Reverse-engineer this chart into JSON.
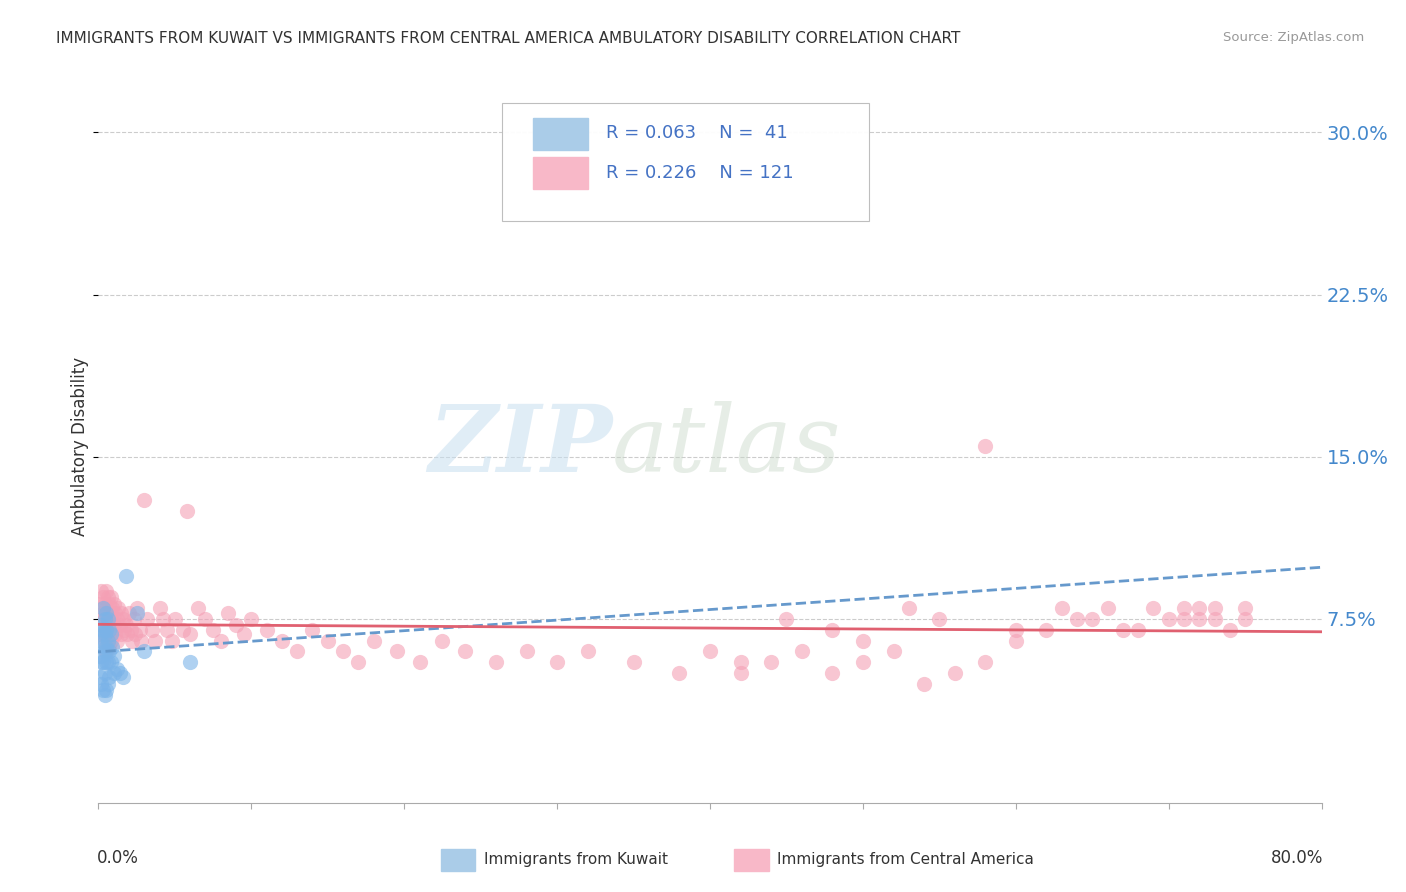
{
  "title": "IMMIGRANTS FROM KUWAIT VS IMMIGRANTS FROM CENTRAL AMERICA AMBULATORY DISABILITY CORRELATION CHART",
  "source": "Source: ZipAtlas.com",
  "ylabel": "Ambulatory Disability",
  "yticks": [
    "7.5%",
    "15.0%",
    "22.5%",
    "30.0%"
  ],
  "ytick_values": [
    0.075,
    0.15,
    0.225,
    0.3
  ],
  "xlim": [
    0.0,
    0.8
  ],
  "ylim": [
    -0.01,
    0.32
  ],
  "legend_r1": "R = 0.063",
  "legend_n1": "N =  41",
  "legend_r2": "R = 0.226",
  "legend_n2": "N = 121",
  "color_kuwait": "#7ab3e8",
  "color_central": "#f4a0b5",
  "color_kuwait_trend": "#6699cc",
  "color_central_trend": "#e06070",
  "background_color": "#ffffff",
  "watermark_zip": "ZIP",
  "watermark_atlas": "atlas",
  "kuwait_x": [
    0.001,
    0.001,
    0.001,
    0.002,
    0.002,
    0.002,
    0.002,
    0.003,
    0.003,
    0.003,
    0.003,
    0.003,
    0.004,
    0.004,
    0.004,
    0.004,
    0.004,
    0.005,
    0.005,
    0.005,
    0.005,
    0.005,
    0.006,
    0.006,
    0.006,
    0.006,
    0.007,
    0.007,
    0.007,
    0.008,
    0.008,
    0.009,
    0.01,
    0.01,
    0.012,
    0.014,
    0.016,
    0.018,
    0.025,
    0.03,
    0.06
  ],
  "kuwait_y": [
    0.068,
    0.058,
    0.048,
    0.072,
    0.065,
    0.055,
    0.045,
    0.08,
    0.07,
    0.062,
    0.055,
    0.042,
    0.075,
    0.068,
    0.06,
    0.05,
    0.04,
    0.078,
    0.07,
    0.062,
    0.055,
    0.042,
    0.075,
    0.065,
    0.055,
    0.045,
    0.07,
    0.06,
    0.048,
    0.068,
    0.055,
    0.062,
    0.058,
    0.05,
    0.052,
    0.05,
    0.048,
    0.095,
    0.078,
    0.06,
    0.055
  ],
  "central_x": [
    0.001,
    0.002,
    0.002,
    0.003,
    0.003,
    0.003,
    0.004,
    0.004,
    0.004,
    0.005,
    0.005,
    0.005,
    0.005,
    0.006,
    0.006,
    0.006,
    0.007,
    0.007,
    0.007,
    0.008,
    0.008,
    0.008,
    0.009,
    0.009,
    0.01,
    0.01,
    0.011,
    0.011,
    0.012,
    0.012,
    0.013,
    0.014,
    0.015,
    0.015,
    0.016,
    0.017,
    0.018,
    0.019,
    0.02,
    0.021,
    0.022,
    0.023,
    0.024,
    0.025,
    0.027,
    0.028,
    0.03,
    0.032,
    0.035,
    0.037,
    0.04,
    0.042,
    0.045,
    0.048,
    0.05,
    0.055,
    0.058,
    0.06,
    0.065,
    0.07,
    0.075,
    0.08,
    0.085,
    0.09,
    0.095,
    0.1,
    0.11,
    0.12,
    0.13,
    0.14,
    0.15,
    0.16,
    0.17,
    0.18,
    0.195,
    0.21,
    0.225,
    0.24,
    0.26,
    0.28,
    0.3,
    0.32,
    0.35,
    0.38,
    0.4,
    0.42,
    0.45,
    0.48,
    0.5,
    0.53,
    0.55,
    0.58,
    0.6,
    0.63,
    0.65,
    0.67,
    0.69,
    0.71,
    0.72,
    0.73,
    0.74,
    0.75,
    0.75,
    0.73,
    0.72,
    0.71,
    0.7,
    0.68,
    0.66,
    0.64,
    0.62,
    0.6,
    0.58,
    0.56,
    0.54,
    0.52,
    0.5,
    0.48,
    0.46,
    0.44,
    0.42
  ],
  "central_y": [
    0.082,
    0.088,
    0.075,
    0.085,
    0.078,
    0.068,
    0.082,
    0.075,
    0.065,
    0.088,
    0.08,
    0.07,
    0.06,
    0.085,
    0.075,
    0.065,
    0.082,
    0.072,
    0.062,
    0.085,
    0.075,
    0.065,
    0.08,
    0.07,
    0.082,
    0.072,
    0.078,
    0.068,
    0.075,
    0.065,
    0.08,
    0.072,
    0.078,
    0.068,
    0.075,
    0.07,
    0.072,
    0.068,
    0.078,
    0.07,
    0.065,
    0.075,
    0.068,
    0.08,
    0.07,
    0.065,
    0.13,
    0.075,
    0.07,
    0.065,
    0.08,
    0.075,
    0.07,
    0.065,
    0.075,
    0.07,
    0.125,
    0.068,
    0.08,
    0.075,
    0.07,
    0.065,
    0.078,
    0.072,
    0.068,
    0.075,
    0.07,
    0.065,
    0.06,
    0.07,
    0.065,
    0.06,
    0.055,
    0.065,
    0.06,
    0.055,
    0.065,
    0.06,
    0.055,
    0.06,
    0.055,
    0.06,
    0.055,
    0.05,
    0.06,
    0.055,
    0.075,
    0.07,
    0.065,
    0.08,
    0.075,
    0.155,
    0.07,
    0.08,
    0.075,
    0.07,
    0.08,
    0.075,
    0.08,
    0.075,
    0.07,
    0.08,
    0.075,
    0.08,
    0.075,
    0.08,
    0.075,
    0.07,
    0.08,
    0.075,
    0.07,
    0.065,
    0.055,
    0.05,
    0.045,
    0.06,
    0.055,
    0.05,
    0.06,
    0.055,
    0.05
  ]
}
